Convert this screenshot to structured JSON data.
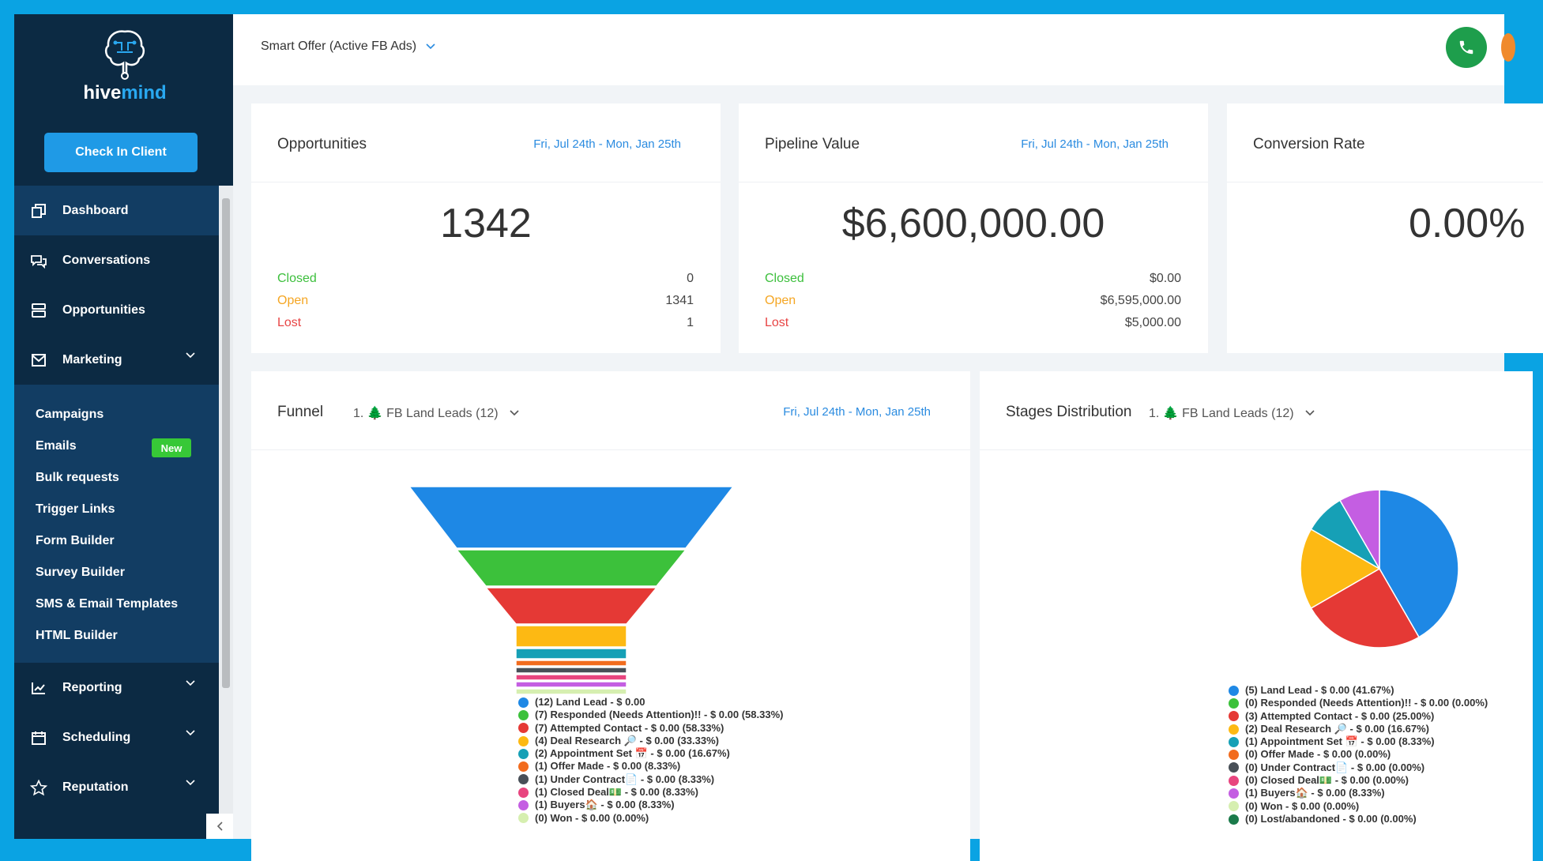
{
  "app": {
    "logo_left": "hive",
    "logo_right": "mind"
  },
  "sidebar": {
    "check_in_label": "Check In Client",
    "items": [
      {
        "label": "Dashboard",
        "icon": "dashboard-icon"
      },
      {
        "label": "Conversations",
        "icon": "chat-icon"
      },
      {
        "label": "Opportunities",
        "icon": "opportunities-icon"
      },
      {
        "label": "Marketing",
        "icon": "mail-icon"
      },
      {
        "label": "Reporting",
        "icon": "chart-icon"
      },
      {
        "label": "Scheduling",
        "icon": "calendar-icon"
      },
      {
        "label": "Reputation",
        "icon": "star-icon"
      }
    ],
    "marketing_sub": [
      {
        "label": "Campaigns"
      },
      {
        "label": "Emails",
        "badge": "New"
      },
      {
        "label": "Bulk requests"
      },
      {
        "label": "Trigger Links"
      },
      {
        "label": "Form Builder"
      },
      {
        "label": "Survey Builder"
      },
      {
        "label": "SMS & Email Templates"
      },
      {
        "label": "HTML Builder"
      }
    ]
  },
  "topbar": {
    "pipeline_select": "Smart Offer (Active FB Ads)"
  },
  "opportunities": {
    "title": "Opportunities",
    "date": "Fri, Jul 24th - Mon, Jan 25th",
    "total": "1342",
    "closed_label": "Closed",
    "closed": "0",
    "open_label": "Open",
    "open": "1341",
    "lost_label": "Lost",
    "lost": "1"
  },
  "pipeline_value": {
    "title": "Pipeline Value",
    "date": "Fri, Jul 24th - Mon, Jan 25th",
    "total": "$6,600,000.00",
    "closed_label": "Closed",
    "closed": "$0.00",
    "open_label": "Open",
    "open": "$6,595,000.00",
    "lost_label": "Lost",
    "lost": "$5,000.00"
  },
  "conversion": {
    "title": "Conversion Rate",
    "value": "0.00%"
  },
  "funnel": {
    "title": "Funnel",
    "stage_select": "1. 🌲 FB Land Leads (12)",
    "date": "Fri, Jul 24th - Mon, Jan 25th",
    "legend": [
      {
        "label": "(12) Land Lead - $ 0.00",
        "color": "#1e88e5"
      },
      {
        "label": "(7) Responded (Needs Attention)!! - $ 0.00 (58.33%)",
        "color": "#3cc13b"
      },
      {
        "label": "(7) Attempted Contact - $ 0.00 (58.33%)",
        "color": "#e53935"
      },
      {
        "label": "(4) Deal Research 🔎 - $ 0.00 (33.33%)",
        "color": "#fdb913"
      },
      {
        "label": "(2) Appointment Set 📅 - $ 0.00 (16.67%)",
        "color": "#16a0b6"
      },
      {
        "label": "(1) Offer Made - $ 0.00 (8.33%)",
        "color": "#f26c1e"
      },
      {
        "label": "(1) Under Contract📄 - $ 0.00 (8.33%)",
        "color": "#484f57"
      },
      {
        "label": "(1) Closed Deal💵 - $ 0.00 (8.33%)",
        "color": "#e8457f"
      },
      {
        "label": "(1) Buyers🏠 - $ 0.00 (8.33%)",
        "color": "#c45ee2"
      },
      {
        "label": "(0) Won - $ 0.00 (0.00%)",
        "color": "#d6efb0"
      }
    ]
  },
  "stages": {
    "title": "Stages Distribution",
    "stage_select": "1. 🌲 FB Land Leads (12)",
    "legend": [
      {
        "label": "(5) Land Lead - $ 0.00 (41.67%)",
        "color": "#1e88e5"
      },
      {
        "label": "(0) Responded (Needs Attention)!! - $ 0.00 (0.00%)",
        "color": "#3cc13b"
      },
      {
        "label": "(3) Attempted Contact - $ 0.00 (25.00%)",
        "color": "#e53935"
      },
      {
        "label": "(2) Deal Research 🔎 - $ 0.00 (16.67%)",
        "color": "#fdb913"
      },
      {
        "label": "(1) Appointment Set 📅 - $ 0.00 (8.33%)",
        "color": "#16a0b6"
      },
      {
        "label": "(0) Offer Made - $ 0.00 (0.00%)",
        "color": "#f26c1e"
      },
      {
        "label": "(0) Under Contract📄 - $ 0.00 (0.00%)",
        "color": "#484f57"
      },
      {
        "label": "(0) Closed Deal💵 - $ 0.00 (0.00%)",
        "color": "#e8457f"
      },
      {
        "label": "(1) Buyers🏠 - $ 0.00 (8.33%)",
        "color": "#c45ee2"
      },
      {
        "label": "(0) Won - $ 0.00 (0.00%)",
        "color": "#d6efb0"
      },
      {
        "label": "(0) Lost/abandoned - $ 0.00 (0.00%)",
        "color": "#1a7a4a"
      }
    ]
  },
  "chart_data": [
    {
      "type": "funnel",
      "categories": [
        "Land Lead",
        "Responded (Needs Attention)!!",
        "Attempted Contact",
        "Deal Research",
        "Appointment Set",
        "Offer Made",
        "Under Contract",
        "Closed Deal",
        "Buyers",
        "Won"
      ],
      "values": [
        12,
        7,
        7,
        4,
        2,
        1,
        1,
        1,
        1,
        0
      ]
    },
    {
      "type": "pie",
      "categories": [
        "Land Lead",
        "Attempted Contact",
        "Deal Research",
        "Appointment Set",
        "Buyers"
      ],
      "values": [
        5,
        3,
        2,
        1,
        1
      ],
      "colors": [
        "#1e88e5",
        "#e53935",
        "#fdb913",
        "#16a0b6",
        "#c45ee2"
      ]
    }
  ]
}
